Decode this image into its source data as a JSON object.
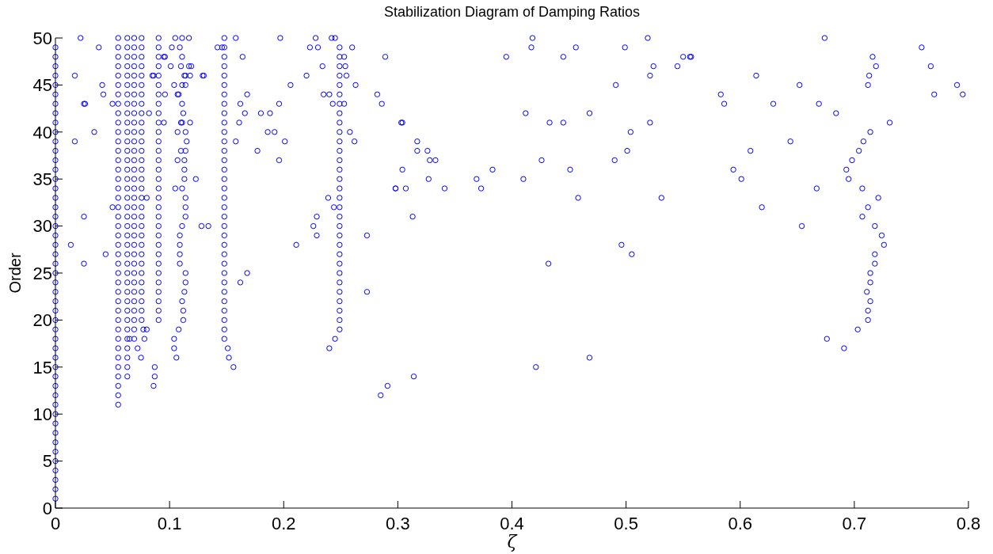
{
  "chart_data": {
    "type": "scatter",
    "title": "Stabilization Diagram of Damping Ratios",
    "xlabel": "ζ",
    "ylabel": "Order",
    "xlim": [
      0,
      0.8
    ],
    "xticks": [
      0,
      0.1,
      0.2,
      0.3,
      0.4,
      0.5,
      0.6,
      0.7,
      0.8
    ],
    "ylim": [
      0,
      50
    ],
    "yticks": [
      0,
      5,
      10,
      15,
      20,
      25,
      30,
      35,
      40,
      45,
      50
    ],
    "marker": "circle",
    "series": [
      {
        "color": "#0000ff",
        "x": [
          0,
          0,
          0,
          0,
          0,
          0,
          0,
          0,
          0,
          0,
          0,
          0,
          0,
          0,
          0,
          0,
          0,
          0,
          0,
          0,
          0,
          0,
          0,
          0,
          0,
          0,
          0,
          0,
          0,
          0,
          0,
          0,
          0,
          0,
          0,
          0,
          0,
          0,
          0,
          0,
          0,
          0,
          0,
          0,
          0,
          0,
          0,
          0,
          0
        ],
        "values": [
          1,
          2,
          3,
          4,
          5,
          6,
          7,
          8,
          9,
          10,
          11,
          12,
          13,
          14,
          15,
          16,
          17,
          18,
          19,
          20,
          21,
          22,
          23,
          24,
          25,
          26,
          27,
          28,
          29,
          30,
          31,
          32,
          33,
          34,
          35,
          36,
          37,
          38,
          39,
          40,
          41,
          42,
          43,
          44,
          45,
          46,
          47,
          48,
          49
        ]
      },
      {
        "color": "#0000ff",
        "x": [
          0.055,
          0.055,
          0.055,
          0.055,
          0.055,
          0.055,
          0.055,
          0.055,
          0.055,
          0.055,
          0.055,
          0.055,
          0.055,
          0.055,
          0.055,
          0.055,
          0.055,
          0.055,
          0.055,
          0.055,
          0.055,
          0.055,
          0.055,
          0.055,
          0.055,
          0.055,
          0.055,
          0.055,
          0.055,
          0.055,
          0.055,
          0.055,
          0.055,
          0.055,
          0.055,
          0.055,
          0.055,
          0.055,
          0.055,
          0.055
        ],
        "values": [
          11,
          12,
          13,
          14,
          15,
          16,
          17,
          18,
          19,
          20,
          21,
          22,
          23,
          24,
          25,
          26,
          27,
          28,
          29,
          30,
          31,
          32,
          33,
          34,
          35,
          36,
          37,
          38,
          39,
          40,
          41,
          42,
          43,
          44,
          45,
          46,
          47,
          48,
          49,
          50
        ]
      },
      {
        "color": "#0000ff",
        "x": [
          0.063,
          0.063,
          0.063,
          0.063,
          0.063,
          0.063,
          0.063,
          0.063,
          0.063,
          0.063,
          0.063,
          0.063,
          0.063,
          0.063,
          0.063,
          0.063,
          0.063,
          0.063,
          0.063,
          0.063,
          0.063,
          0.063,
          0.063,
          0.063,
          0.063,
          0.063,
          0.063,
          0.063,
          0.063,
          0.063,
          0.063,
          0.063,
          0.063,
          0.063,
          0.063,
          0.063,
          0.063
        ],
        "values": [
          14,
          15,
          16,
          17,
          18,
          19,
          20,
          21,
          22,
          23,
          24,
          25,
          26,
          27,
          28,
          29,
          30,
          31,
          32,
          33,
          34,
          35,
          36,
          37,
          38,
          39,
          40,
          41,
          42,
          43,
          44,
          45,
          46,
          47,
          48,
          49,
          50
        ]
      },
      {
        "color": "#0000ff",
        "x": [
          0.069,
          0.069,
          0.069,
          0.069,
          0.069,
          0.069,
          0.069,
          0.069,
          0.069,
          0.069,
          0.069,
          0.069,
          0.069,
          0.069,
          0.069,
          0.069,
          0.069,
          0.069,
          0.069,
          0.069,
          0.069,
          0.069,
          0.069,
          0.069,
          0.069,
          0.069,
          0.069,
          0.069,
          0.069,
          0.069,
          0.069,
          0.069,
          0.069
        ],
        "values": [
          18,
          19,
          20,
          21,
          22,
          23,
          24,
          25,
          26,
          27,
          28,
          29,
          30,
          31,
          32,
          33,
          34,
          35,
          36,
          37,
          38,
          39,
          40,
          41,
          42,
          43,
          44,
          45,
          46,
          47,
          48,
          49,
          50
        ]
      },
      {
        "color": "#0000ff",
        "x": [
          0.0755,
          0.0755,
          0.0755,
          0.0755,
          0.0755,
          0.0755,
          0.0755,
          0.0755,
          0.0755,
          0.0755,
          0.0755,
          0.0755,
          0.0755,
          0.0755,
          0.0755,
          0.0755,
          0.0755,
          0.0755,
          0.0755,
          0.0755,
          0.0755,
          0.0755,
          0.0755,
          0.0755,
          0.0755,
          0.0755,
          0.0755,
          0.0755,
          0.0755,
          0.0755,
          0.0755
        ],
        "values": [
          20,
          21,
          22,
          23,
          24,
          25,
          26,
          27,
          28,
          29,
          30,
          31,
          32,
          33,
          34,
          35,
          36,
          37,
          38,
          39,
          40,
          41,
          42,
          43,
          44,
          45,
          46,
          47,
          48,
          49,
          50
        ]
      },
      {
        "color": "#0000ff",
        "x": [
          0.0904,
          0.0904,
          0.0904,
          0.0904,
          0.0904,
          0.0904,
          0.0904,
          0.0904,
          0.0904,
          0.0904,
          0.0904,
          0.0904,
          0.0904,
          0.0904,
          0.0904,
          0.0904,
          0.0904,
          0.0904,
          0.0904,
          0.0904,
          0.0904,
          0.0904,
          0.0904,
          0.0904,
          0.0904,
          0.0904,
          0.0904,
          0.0904,
          0.0904,
          0.0904,
          0.0904
        ],
        "values": [
          20,
          21,
          22,
          23,
          24,
          25,
          26,
          27,
          28,
          29,
          30,
          31,
          32,
          33,
          34,
          35,
          36,
          37,
          38,
          39,
          40,
          41,
          42,
          43,
          44,
          45,
          46,
          47,
          48,
          49,
          50
        ]
      },
      {
        "color": "#0000ff",
        "x": [
          0.148,
          0.148,
          0.148,
          0.148,
          0.148,
          0.148,
          0.148,
          0.148,
          0.148,
          0.148,
          0.148,
          0.148,
          0.148,
          0.148,
          0.148,
          0.148,
          0.148,
          0.148,
          0.148,
          0.148,
          0.148,
          0.148,
          0.148,
          0.148,
          0.148,
          0.148,
          0.148,
          0.148,
          0.148,
          0.148,
          0.148,
          0.148,
          0.148
        ],
        "values": [
          18,
          19,
          20,
          21,
          22,
          23,
          24,
          25,
          26,
          27,
          28,
          29,
          30,
          31,
          32,
          33,
          34,
          35,
          36,
          37,
          38,
          39,
          40,
          41,
          42,
          43,
          44,
          45,
          46,
          47,
          48,
          49,
          50
        ]
      },
      {
        "color": "#0000ff",
        "x": [
          0.249,
          0.249,
          0.249,
          0.249,
          0.249,
          0.249,
          0.249,
          0.249,
          0.249,
          0.249,
          0.249,
          0.249,
          0.249,
          0.249,
          0.249,
          0.249,
          0.249,
          0.249,
          0.249,
          0.249,
          0.249,
          0.249,
          0.249,
          0.249,
          0.249,
          0.249,
          0.249,
          0.249,
          0.249,
          0.249,
          0.249
        ],
        "values": [
          19,
          20,
          21,
          22,
          23,
          24,
          25,
          26,
          27,
          28,
          29,
          30,
          31,
          32,
          33,
          34,
          35,
          36,
          37,
          38,
          39,
          40,
          41,
          42,
          43,
          44,
          45,
          46,
          47,
          48,
          49
        ]
      },
      {
        "color": "#0000ff",
        "x": [
          0.105,
          0.111,
          0.117,
          0.102,
          0.109,
          0.111,
          0.11,
          0.117,
          0.119,
          0.101,
          0.113,
          0.114,
          0.118,
          0.104,
          0.111,
          0.114,
          0.107,
          0.108,
          0.111,
          0.112,
          0.11,
          0.111,
          0.118,
          0.107,
          0.114,
          0.115,
          0.11,
          0.114,
          0.107,
          0.113,
          0.113,
          0.113,
          0.105,
          0.111,
          0.114,
          0.114,
          0.114,
          0.111,
          0.109,
          0.109,
          0.109,
          0.109,
          0.114,
          0.114,
          0.113,
          0.111,
          0.112,
          0.112,
          0.108,
          0.104,
          0.104,
          0.106
        ],
        "values": [
          50,
          50,
          50,
          49,
          49,
          48,
          47,
          47,
          47,
          47,
          46,
          46,
          46,
          45,
          45,
          45,
          44,
          44,
          43,
          42,
          41,
          41,
          41,
          40,
          40,
          39,
          38,
          38,
          37,
          37,
          36,
          35,
          34,
          34,
          33,
          32,
          31,
          30,
          29,
          28,
          27,
          26,
          25,
          24,
          23,
          22,
          21,
          20,
          19,
          18,
          17,
          16
        ]
      },
      {
        "color": "#0000ff",
        "x": [
          0.022,
          0.038,
          0.017,
          0.041,
          0.042,
          0.025,
          0.026,
          0.034,
          0.017,
          0.025,
          0.0135,
          0.044,
          0.025,
          0.05,
          0.05,
          0.082,
          0.08,
          0.085,
          0.086,
          0.077,
          0.08,
          0.065,
          0.078,
          0.072,
          0.075,
          0.087,
          0.087,
          0.086,
          0.129,
          0.123,
          0.095,
          0.096,
          0.095,
          0.096
        ],
        "values": [
          50,
          49,
          46,
          45,
          44,
          43,
          43,
          40,
          39,
          31,
          28,
          27,
          26,
          32,
          43,
          42,
          33,
          46,
          46,
          19,
          19,
          18,
          18,
          17,
          16,
          15,
          14,
          13,
          46,
          35,
          48,
          48,
          41,
          44
        ]
      },
      {
        "color": "#0000ff",
        "x": [
          0.158,
          0.197,
          0.228,
          0.242,
          0.245,
          0.142,
          0.146,
          0.223,
          0.23,
          0.26,
          0.164,
          0.289,
          0.253,
          0.234,
          0.254,
          0.13,
          0.22,
          0.255,
          0.206,
          0.263,
          0.168,
          0.235,
          0.24,
          0.282,
          0.162,
          0.196,
          0.243,
          0.253,
          0.286,
          0.166,
          0.18,
          0.188,
          0.161,
          0.304,
          0.186,
          0.192,
          0.258,
          0.158,
          0.201,
          0.262,
          0.177,
          0.196,
          0.298,
          0.239,
          0.244,
          0.229,
          0.226,
          0.229,
          0.273,
          0.211,
          0.168,
          0.162,
          0.273,
          0.151,
          0.152,
          0.156,
          0.291,
          0.285,
          0.128,
          0.134,
          0.245,
          0.24
        ],
        "values": [
          50,
          50,
          50,
          50,
          50,
          49,
          49,
          49,
          49,
          49,
          48,
          48,
          48,
          47,
          47,
          46,
          46,
          46,
          45,
          45,
          44,
          44,
          44,
          44,
          43,
          43,
          43,
          43,
          43,
          42,
          42,
          42,
          41,
          41,
          40,
          40,
          40,
          39,
          39,
          39,
          38,
          37,
          34,
          33,
          32,
          31,
          30,
          29,
          29,
          28,
          25,
          24,
          23,
          17,
          16,
          15,
          13,
          12,
          30,
          30,
          18,
          17
        ]
      },
      {
        "color": "#0000ff",
        "x": [
          0.418,
          0.519,
          0.417,
          0.456,
          0.499,
          0.395,
          0.445,
          0.55,
          0.556,
          0.524,
          0.545,
          0.521,
          0.491,
          0.412,
          0.468,
          0.303,
          0.433,
          0.445,
          0.521,
          0.504,
          0.317,
          0.317,
          0.326,
          0.501,
          0.328,
          0.333,
          0.426,
          0.49,
          0.304,
          0.383,
          0.451,
          0.327,
          0.369,
          0.41,
          0.307,
          0.341,
          0.373,
          0.298,
          0.458,
          0.531,
          0.313,
          0.496,
          0.505,
          0.432,
          0.468,
          0.421,
          0.314
        ],
        "values": [
          50,
          50,
          49,
          49,
          49,
          48,
          48,
          48,
          48,
          47,
          47,
          46,
          45,
          42,
          42,
          41,
          41,
          41,
          41,
          40,
          39,
          38,
          38,
          38,
          37,
          37,
          37,
          37,
          36,
          36,
          36,
          35,
          35,
          35,
          34,
          34,
          34,
          34,
          33,
          33,
          31,
          28,
          27,
          26,
          16,
          15,
          14
        ]
      },
      {
        "color": "#0000ff",
        "x": [
          0.674,
          0.759,
          0.716,
          0.767,
          0.719,
          0.614,
          0.713,
          0.652,
          0.712,
          0.79,
          0.583,
          0.77,
          0.795,
          0.586,
          0.629,
          0.669,
          0.684,
          0.731,
          0.714,
          0.644,
          0.708,
          0.609,
          0.704,
          0.698,
          0.594,
          0.693,
          0.601,
          0.695,
          0.667,
          0.707,
          0.721,
          0.619,
          0.712,
          0.707,
          0.654,
          0.718,
          0.724,
          0.726,
          0.718,
          0.718,
          0.714,
          0.714,
          0.711,
          0.714,
          0.712,
          0.712,
          0.703,
          0.676,
          0.691,
          0.557
        ],
        "values": [
          50,
          49,
          48,
          47,
          47,
          46,
          46,
          45,
          45,
          45,
          44,
          44,
          44,
          43,
          43,
          43,
          42,
          41,
          40,
          39,
          39,
          38,
          38,
          37,
          36,
          36,
          35,
          35,
          34,
          34,
          33,
          32,
          32,
          31,
          30,
          30,
          29,
          28,
          27,
          26,
          25,
          24,
          23,
          22,
          21,
          20,
          19,
          18,
          17,
          48
        ]
      }
    ]
  }
}
